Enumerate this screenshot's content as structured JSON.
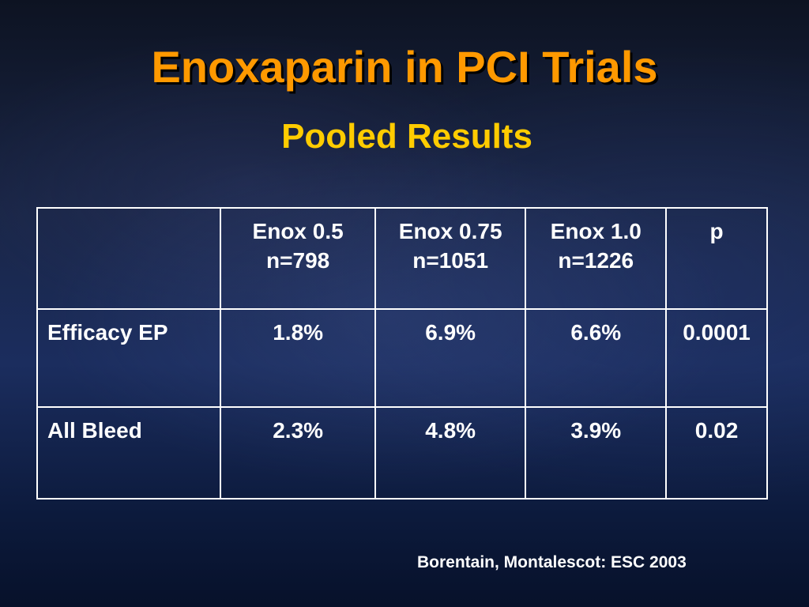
{
  "slide": {
    "title": "Enoxaparin in PCI Trials",
    "subtitle": "Pooled Results",
    "citation": "Borentain, Montalescot: ESC 2003"
  },
  "table": {
    "header": [
      {
        "line1": "",
        "line2": ""
      },
      {
        "line1": "Enox 0.5",
        "line2": "n=798"
      },
      {
        "line1": "Enox 0.75",
        "line2": "n=1051"
      },
      {
        "line1": "Enox 1.0",
        "line2": "n=1226"
      },
      {
        "line1": "p",
        "line2": ""
      }
    ],
    "rows": [
      {
        "label": "Efficacy EP",
        "values": [
          "1.8%",
          "6.9%",
          "6.6%",
          "0.0001"
        ]
      },
      {
        "label": "All Bleed",
        "values": [
          "2.3%",
          "4.8%",
          "3.9%",
          "0.02"
        ]
      }
    ]
  },
  "colors": {
    "title": "#ff9900",
    "subtitle": "#ffcc00",
    "text": "#ffffff",
    "background": "#1b2d5e"
  }
}
